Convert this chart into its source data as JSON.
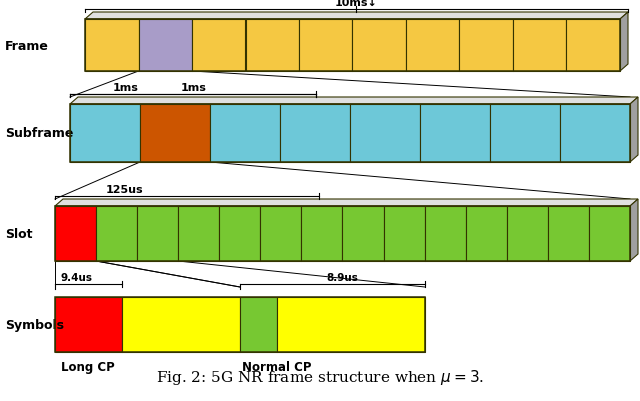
{
  "title": "Fig. 2: 5G NR frame structure when $\\mu = 3$.",
  "frame_label": "Frame",
  "subframe_label": "Subframe",
  "slot_label": "Slot",
  "symbols_label": "Symbols",
  "frame_duration": "10ms↓",
  "subframe_duration": "1ms",
  "slot_duration": "125us",
  "long_cp_duration": "9.4us",
  "normal_cp_duration": "8.9us",
  "long_cp_label": "Long CP",
  "normal_cp_label": "Normal CP",
  "colors": {
    "frame_main": "#F5C842",
    "frame_highlight": "#A89CC8",
    "subframe_main": "#6DC8D8",
    "subframe_highlight": "#CC5500",
    "slot_main": "#77C832",
    "slot_highlight": "#FF0000",
    "symbols_cp": "#FF0000",
    "symbols_data": "#FFFF00",
    "symbols_normal_cp": "#77C832",
    "border": "#333300",
    "top_face": "#e0e0e0",
    "right_face": "#a0a0a0",
    "bg": "#ffffff"
  },
  "frame_n_cells": 10,
  "frame_highlight_idx": 1,
  "subframe_n_cells": 8,
  "subframe_highlight_idx": 1,
  "slot_n_cells": 14,
  "slot_highlight_idx": 0,
  "sym_segments": [
    0.18,
    0.32,
    0.1,
    0.4
  ],
  "figsize": [
    6.4,
    4.02
  ],
  "dpi": 100
}
